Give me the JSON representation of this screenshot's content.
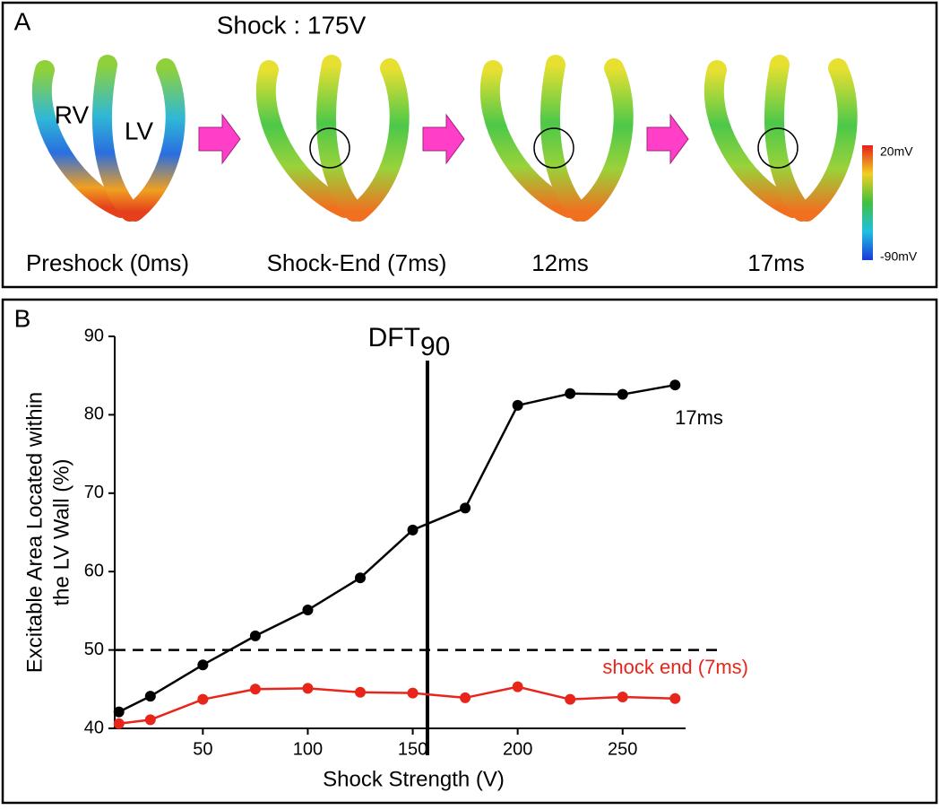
{
  "panel_a": {
    "label": "A",
    "title": "Shock : 175V",
    "chamber_labels": [
      "RV",
      "LV"
    ],
    "frame_labels": [
      "Preshock (0ms)",
      "Shock-End (7ms)",
      "12ms",
      "17ms"
    ],
    "colorbar": {
      "max_label": "20mV",
      "min_label": "-90mV"
    }
  },
  "chart_data": {
    "type": "line",
    "panel_label": "B",
    "x": [
      10,
      25,
      50,
      75,
      100,
      125,
      150,
      175,
      200,
      225,
      250,
      275
    ],
    "series": [
      {
        "name": "17ms",
        "color": "#000000",
        "values": [
          42.1,
          44.1,
          48.1,
          51.8,
          55.1,
          59.2,
          65.3,
          68.1,
          81.2,
          82.7,
          82.6,
          83.8
        ]
      },
      {
        "name": "shock end (7ms)",
        "color": "#e8251b",
        "values": [
          40.6,
          41.1,
          43.7,
          45.0,
          45.1,
          44.6,
          44.5,
          43.9,
          45.3,
          43.7,
          44.0,
          43.8
        ]
      }
    ],
    "xlim": [
      8,
      280
    ],
    "ylim": [
      40,
      90
    ],
    "xticks": [
      50,
      100,
      150,
      200,
      250
    ],
    "yticks": [
      40,
      50,
      60,
      70,
      80,
      90
    ],
    "xlabel": "Shock Strength (V)",
    "ylabel": [
      "Excitable Area Located within",
      "the LV Wall (%)"
    ],
    "hline": {
      "value": 50
    },
    "vline": {
      "value": 157,
      "label": "DFT",
      "subscript": "90"
    }
  }
}
